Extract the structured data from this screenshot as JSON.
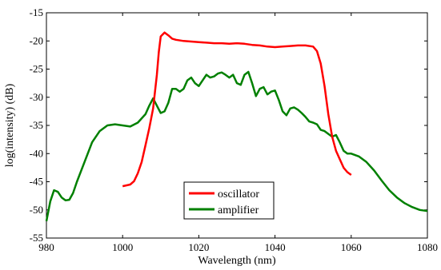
{
  "chart_data": {
    "type": "line",
    "title": "",
    "xlabel": "Wavelength (nm)",
    "ylabel": "log(intensity) (dB)",
    "xlim": [
      980,
      1080
    ],
    "ylim": [
      -55,
      -15
    ],
    "xticks": [
      980,
      1000,
      1020,
      1040,
      1060,
      1080
    ],
    "yticks": [
      -55,
      -50,
      -45,
      -40,
      -35,
      -30,
      -25,
      -20,
      -15
    ],
    "grid": false,
    "legend": "lower-center",
    "series": [
      {
        "name": "oscillator",
        "color": "#ff0000",
        "x": [
          1000,
          1002,
          1003,
          1004,
          1005,
          1006,
          1007,
          1008,
          1009,
          1009.5,
          1010,
          1011,
          1012,
          1013,
          1014,
          1016,
          1018,
          1020,
          1022,
          1024,
          1026,
          1028,
          1030,
          1032,
          1034,
          1036,
          1038,
          1040,
          1042,
          1044,
          1046,
          1048,
          1050,
          1051,
          1052,
          1053,
          1054,
          1055,
          1056,
          1057,
          1058,
          1059,
          1060
        ],
        "y": [
          -45.8,
          -45.5,
          -44.9,
          -43.5,
          -41.5,
          -38.5,
          -35.5,
          -32.0,
          -26.0,
          -22.0,
          -19.2,
          -18.5,
          -19.0,
          -19.6,
          -19.8,
          -20.0,
          -20.1,
          -20.2,
          -20.3,
          -20.4,
          -20.4,
          -20.5,
          -20.4,
          -20.5,
          -20.7,
          -20.8,
          -21.0,
          -21.1,
          -21.0,
          -20.9,
          -20.8,
          -20.8,
          -21.0,
          -21.8,
          -24.0,
          -28.0,
          -33.0,
          -37.0,
          -39.5,
          -41.0,
          -42.5,
          -43.3,
          -43.8
        ]
      },
      {
        "name": "amplifier",
        "color": "#008000",
        "x": [
          980,
          981,
          982,
          983,
          984,
          985,
          986,
          987,
          988,
          990,
          992,
          994,
          996,
          998,
          1000,
          1002,
          1004,
          1006,
          1007,
          1008,
          1009,
          1010,
          1011,
          1012,
          1013,
          1014,
          1015,
          1016,
          1017,
          1018,
          1019,
          1020,
          1021,
          1022,
          1023,
          1024,
          1025,
          1026,
          1027,
          1028,
          1029,
          1030,
          1031,
          1032,
          1033,
          1034,
          1035,
          1036,
          1037,
          1038,
          1039,
          1040,
          1041,
          1042,
          1043,
          1044,
          1045,
          1046,
          1047,
          1048,
          1049,
          1050,
          1051,
          1052,
          1053,
          1054,
          1055,
          1056,
          1057,
          1058,
          1059,
          1060,
          1062,
          1064,
          1066,
          1068,
          1070,
          1072,
          1074,
          1076,
          1078,
          1080
        ],
        "y": [
          -52.0,
          -48.5,
          -46.5,
          -46.8,
          -47.8,
          -48.3,
          -48.2,
          -47.0,
          -45.0,
          -41.5,
          -38.0,
          -36.0,
          -35.0,
          -34.8,
          -35.0,
          -35.2,
          -34.5,
          -33.0,
          -31.5,
          -30.2,
          -31.5,
          -32.8,
          -32.5,
          -31.0,
          -28.5,
          -28.5,
          -29.0,
          -28.5,
          -27.0,
          -26.5,
          -27.5,
          -28.0,
          -27.0,
          -26.0,
          -26.5,
          -26.3,
          -25.8,
          -25.6,
          -26.0,
          -26.5,
          -26.0,
          -27.5,
          -27.8,
          -26.0,
          -25.5,
          -27.5,
          -29.8,
          -28.5,
          -28.2,
          -29.5,
          -29.0,
          -28.8,
          -30.5,
          -32.5,
          -33.2,
          -32.0,
          -31.8,
          -32.2,
          -32.8,
          -33.5,
          -34.3,
          -34.5,
          -34.8,
          -35.8,
          -36.0,
          -36.5,
          -37.0,
          -36.7,
          -38.0,
          -39.5,
          -40.0,
          -40.0,
          -40.5,
          -41.5,
          -43.0,
          -44.8,
          -46.5,
          -47.8,
          -48.8,
          -49.5,
          -50.0,
          -50.2
        ]
      }
    ]
  }
}
